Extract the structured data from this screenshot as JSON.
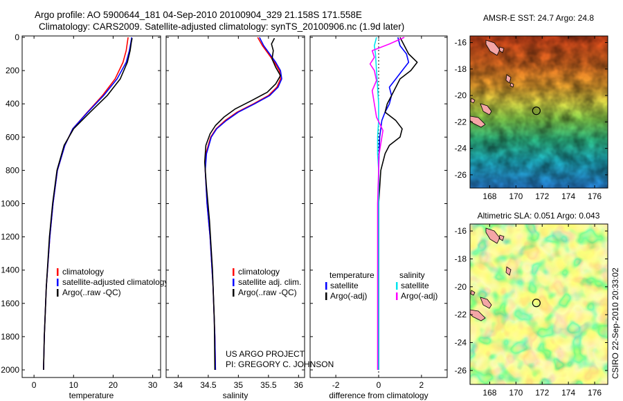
{
  "header": {
    "line1": "Argo profile: AO 5900644_181 04-Sep-2010 20100904_329 21.158S 171.558E",
    "line2": "Climatology: CARS2009. Satellite-adjusted climatology: synTS_20100906.nc (1.9d later)"
  },
  "credits": {
    "project": "US ARGO PROJECT",
    "pi": "PI: GREGORY C. JOHNSON",
    "stamp": "CSIRO 22-Sep-2010 20:33:02"
  },
  "colors": {
    "climatology": "#ff0000",
    "satellite": "#0000ff",
    "argo": "#000000",
    "sat_salinity": "#00e5ee",
    "argo_salinity": "#ff00ff"
  },
  "chart_data": [
    {
      "type": "line",
      "id": "temperature",
      "xlabel": "temperature",
      "ylabel": "",
      "xlim": [
        -3,
        32
      ],
      "ylim": [
        0,
        2050
      ],
      "y_inverted": true,
      "xticks": [
        0,
        10,
        20,
        30
      ],
      "yticks": [
        0,
        200,
        400,
        600,
        800,
        1000,
        1200,
        1400,
        1600,
        1800,
        2000
      ],
      "legend": [
        "climatology",
        "satellite-adjusted climatology",
        "Argo(..raw -QC)"
      ],
      "legend_position": "lower-right",
      "series": [
        {
          "name": "climatology",
          "color": "#ff0000",
          "y": [
            0,
            30,
            80,
            150,
            250,
            350,
            450,
            550,
            650,
            800,
            1000,
            1200,
            1500,
            1800,
            2000
          ],
          "x": [
            23.8,
            23.6,
            23.3,
            22.5,
            20.5,
            17.3,
            13.5,
            9.8,
            7.8,
            5.9,
            4.8,
            4.0,
            3.1,
            2.6,
            2.4
          ]
        },
        {
          "name": "satellite-adjusted climatology",
          "color": "#0000ff",
          "y": [
            0,
            30,
            80,
            150,
            250,
            350,
            450,
            550,
            650,
            800,
            1000,
            1200,
            1500,
            1800,
            2000
          ],
          "x": [
            24.7,
            24.5,
            24.1,
            23.3,
            21.0,
            17.6,
            13.6,
            9.8,
            7.8,
            5.9,
            4.8,
            4.0,
            3.1,
            2.6,
            2.4
          ]
        },
        {
          "name": "Argo(..raw -QC)",
          "color": "#000000",
          "y": [
            5,
            30,
            80,
            150,
            250,
            350,
            450,
            550,
            650,
            800,
            1000,
            1200,
            1500,
            1800,
            2000
          ],
          "x": [
            24.8,
            24.6,
            24.3,
            23.6,
            21.8,
            18.5,
            14.2,
            10.0,
            7.6,
            5.8,
            4.7,
            3.9,
            3.1,
            2.6,
            2.4
          ]
        }
      ]
    },
    {
      "type": "line",
      "id": "salinity",
      "xlabel": "salinity",
      "ylabel": "",
      "xlim": [
        33.8,
        36.1
      ],
      "ylim": [
        0,
        2050
      ],
      "y_inverted": true,
      "xticks": [
        34,
        34.5,
        35,
        35.5,
        36
      ],
      "yticks": [
        0,
        200,
        400,
        600,
        800,
        1000,
        1200,
        1400,
        1600,
        1800,
        2000
      ],
      "legend": [
        "climatology",
        "satellite adj. clim.",
        "Argo(..raw -QC)"
      ],
      "legend_position": "lower-right",
      "series": [
        {
          "name": "climatology",
          "color": "#ff0000",
          "y": [
            0,
            50,
            100,
            150,
            200,
            250,
            300,
            350,
            400,
            450,
            500,
            550,
            600,
            700,
            800,
            1000,
            1200,
            1500,
            1800,
            2000
          ],
          "x": [
            35.32,
            35.4,
            35.5,
            35.6,
            35.68,
            35.7,
            35.64,
            35.5,
            35.25,
            34.98,
            34.78,
            34.63,
            34.54,
            34.46,
            34.45,
            34.48,
            34.53,
            34.58,
            34.61,
            34.62
          ]
        },
        {
          "name": "satellite adj. clim.",
          "color": "#0000ff",
          "y": [
            0,
            50,
            100,
            150,
            200,
            250,
            300,
            350,
            400,
            450,
            500,
            550,
            600,
            700,
            800,
            1000,
            1200,
            1500,
            1800,
            2000
          ],
          "x": [
            35.35,
            35.42,
            35.52,
            35.62,
            35.7,
            35.72,
            35.66,
            35.52,
            35.27,
            35.0,
            34.8,
            34.64,
            34.55,
            34.47,
            34.45,
            34.48,
            34.53,
            34.58,
            34.61,
            34.62
          ]
        },
        {
          "name": "Argo(..raw -QC)",
          "color": "#000000",
          "y": [
            5,
            40,
            80,
            130,
            180,
            230,
            280,
            330,
            380,
            430,
            480,
            530,
            580,
            650,
            750,
            900,
            1100,
            1400,
            1700,
            2000
          ],
          "x": [
            35.6,
            35.55,
            35.58,
            35.56,
            35.62,
            35.7,
            35.62,
            35.48,
            35.22,
            34.95,
            34.76,
            34.62,
            34.53,
            34.46,
            34.44,
            34.47,
            34.52,
            34.57,
            34.6,
            34.61
          ]
        }
      ]
    },
    {
      "type": "line",
      "id": "difference",
      "xlabel": "difference from climatology",
      "ylabel": "",
      "xlim": [
        -3.2,
        3.2
      ],
      "ylim": [
        0,
        2050
      ],
      "y_inverted": true,
      "xticks": [
        -2,
        0,
        2
      ],
      "yticks": [
        0,
        200,
        400,
        600,
        800,
        1000,
        1200,
        1400,
        1600,
        1800,
        2000
      ],
      "legend": [
        "temperature",
        "satellite",
        "Argo(-adj)",
        "salinity",
        "satellite",
        "Argo(-adj)"
      ],
      "legend_position": "lower-middle",
      "series": [
        {
          "name": "temperature satellite",
          "color": "#0000ff",
          "y": [
            0,
            50,
            100,
            150,
            200,
            250,
            300,
            350,
            400,
            450,
            500,
            550,
            600,
            700,
            800,
            1000,
            1400,
            1800,
            2000
          ],
          "x": [
            0.9,
            1.0,
            1.3,
            1.4,
            1.1,
            0.8,
            0.5,
            0.6,
            0.5,
            0.3,
            0.15,
            0.1,
            0.05,
            0.02,
            0.0,
            0.0,
            0.0,
            0.0,
            0.0
          ]
        },
        {
          "name": "temperature Argo(-adj)",
          "color": "#000000",
          "y": [
            0,
            50,
            100,
            150,
            200,
            250,
            300,
            350,
            400,
            450,
            500,
            550,
            600,
            650,
            700,
            800,
            1000,
            1400,
            1800,
            2000
          ],
          "x": [
            1.0,
            1.2,
            1.4,
            1.8,
            1.5,
            1.0,
            0.8,
            0.6,
            0.4,
            0.3,
            0.8,
            1.1,
            1.0,
            0.5,
            0.3,
            0.1,
            0.0,
            0.0,
            0.0,
            0.0
          ]
        },
        {
          "name": "salinity satellite",
          "color": "#00e5ee",
          "y": [
            0,
            50,
            100,
            200,
            300,
            400,
            500,
            600,
            700,
            800,
            1000,
            1400,
            1800,
            2000
          ],
          "x": [
            -0.1,
            -0.2,
            -0.15,
            -0.1,
            -0.05,
            0.0,
            0.0,
            -0.05,
            -0.05,
            0.0,
            0.0,
            0.0,
            0.0,
            0.0
          ]
        },
        {
          "name": "salinity Argo(-adj)",
          "color": "#ff00ff",
          "y": [
            0,
            40,
            80,
            120,
            160,
            200,
            260,
            320,
            400,
            480,
            560,
            640,
            720,
            800,
            1000,
            1400,
            1800,
            2000
          ],
          "x": [
            1.2,
            0.5,
            -0.3,
            -0.2,
            -0.4,
            -0.2,
            -0.1,
            -0.3,
            -0.2,
            -0.1,
            0.2,
            0.1,
            0.0,
            0.0,
            -0.05,
            -0.05,
            -0.05,
            -0.05
          ]
        }
      ]
    },
    {
      "type": "heatmap",
      "id": "sst-map",
      "title": "AMSR-E SST: 24.7 Argo: 24.8",
      "xlim": [
        166.5,
        177
      ],
      "ylim": [
        -27,
        -15.5
      ],
      "xticks": [
        168,
        170,
        172,
        174,
        176
      ],
      "yticks": [
        -16,
        -18,
        -20,
        -22,
        -24,
        -26
      ],
      "marker": {
        "lon": 171.558,
        "lat": -21.158
      }
    },
    {
      "type": "heatmap",
      "id": "sla-map",
      "title": "Altimetric SLA: 0.051 Argo: 0.043",
      "xlim": [
        166.5,
        177
      ],
      "ylim": [
        -27,
        -15.5
      ],
      "xticks": [
        168,
        170,
        172,
        174,
        176
      ],
      "yticks": [
        -16,
        -18,
        -20,
        -22,
        -24,
        -26
      ],
      "marker": {
        "lon": 171.558,
        "lat": -21.158
      }
    }
  ]
}
